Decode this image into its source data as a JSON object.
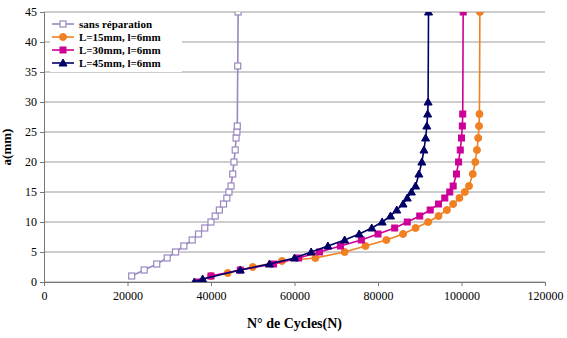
{
  "chart_data": {
    "type": "line",
    "x_label": "N° de Cycles(N)",
    "y_label": "a(mm)",
    "xlim": [
      0,
      120000
    ],
    "xticks": [
      0,
      20000,
      40000,
      60000,
      80000,
      100000,
      120000
    ],
    "ylim": [
      0,
      45
    ],
    "yticks": [
      0,
      5,
      10,
      15,
      20,
      25,
      30,
      35,
      40,
      45
    ],
    "grid": true,
    "legend": "upper left",
    "series": [
      {
        "name": "sans réparation",
        "color": "#9a88c0",
        "marker": "square-open",
        "line_style": "solid",
        "x": [
          21000,
          24000,
          27000,
          29500,
          31500,
          33500,
          35500,
          37000,
          38500,
          40000,
          41000,
          42000,
          43000,
          43800,
          44300,
          44800,
          45200,
          45500,
          45800,
          46000,
          46200,
          46300,
          46400,
          46500
        ],
        "values": [
          1,
          2,
          3,
          4,
          5,
          6,
          7,
          8,
          9,
          10,
          11,
          12,
          13,
          14,
          15,
          16,
          18,
          20,
          22,
          24,
          25,
          26,
          36,
          45
        ]
      },
      {
        "name": "L=15mm, l=6mm",
        "color": "#f08022",
        "marker": "circle",
        "line_style": "solid",
        "x": [
          40000,
          44000,
          50000,
          57000,
          65000,
          72000,
          77000,
          82000,
          86000,
          89000,
          92000,
          94500,
          96500,
          98000,
          99500,
          100800,
          101800,
          102700,
          103300,
          103700,
          104000,
          104200,
          104300,
          104400
        ],
        "values": [
          1,
          1.5,
          2.5,
          3.5,
          4,
          5,
          6,
          7,
          8,
          9,
          10,
          11,
          12,
          13,
          14,
          15,
          16,
          18,
          20,
          22,
          24,
          26,
          28,
          45
        ]
      },
      {
        "name": "L=30mm, l=6mm",
        "color": "#cc0099",
        "marker": "square",
        "line_style": "solid",
        "x": [
          37000,
          40000,
          47000,
          55000,
          61000,
          66000,
          71000,
          76000,
          80000,
          84000,
          87000,
          90000,
          92500,
          94500,
          96000,
          97200,
          98000,
          98800,
          99300,
          99700,
          100000,
          100200,
          100300,
          100400
        ],
        "values": [
          0,
          1,
          2,
          3,
          4,
          5,
          6,
          7,
          8,
          9,
          10,
          11,
          12,
          13,
          14,
          15,
          16,
          18,
          20,
          22,
          24,
          26,
          28,
          45
        ]
      },
      {
        "name": "L=45mm, l=6mm",
        "color": "#000066",
        "marker": "triangle",
        "line_style": "solid",
        "x": [
          36000,
          38000,
          47000,
          54000,
          60000,
          64000,
          68000,
          72000,
          75500,
          78500,
          81000,
          83000,
          84500,
          86000,
          87000,
          88000,
          89000,
          89800,
          90500,
          91000,
          91400,
          91700,
          91900,
          92000,
          92100
        ],
        "values": [
          0,
          0.5,
          2,
          3,
          4,
          5,
          6,
          7,
          8,
          9,
          10,
          11,
          12,
          13,
          14,
          15,
          16,
          18,
          20,
          22,
          24,
          26,
          28,
          30,
          45
        ]
      }
    ]
  }
}
